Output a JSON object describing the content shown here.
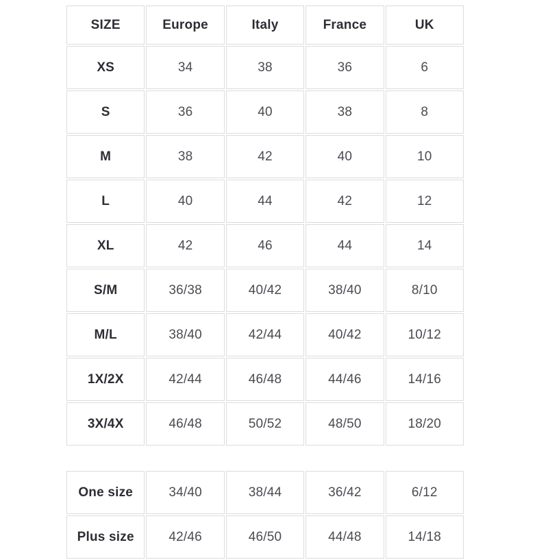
{
  "colors": {
    "border": "#dcdcdc",
    "header_text": "#2d2d35",
    "cell_text": "#4b4b52",
    "background": "#ffffff"
  },
  "main_table": {
    "headers": [
      "SIZE",
      "Europe",
      "Italy",
      "France",
      "UK"
    ],
    "rows": [
      {
        "label": "XS",
        "values": [
          "34",
          "38",
          "36",
          "6"
        ]
      },
      {
        "label": "S",
        "values": [
          "36",
          "40",
          "38",
          "8"
        ]
      },
      {
        "label": "M",
        "values": [
          "38",
          "42",
          "40",
          "10"
        ]
      },
      {
        "label": "L",
        "values": [
          "40",
          "44",
          "42",
          "12"
        ]
      },
      {
        "label": "XL",
        "values": [
          "42",
          "46",
          "44",
          "14"
        ]
      },
      {
        "label": "S/M",
        "values": [
          "36/38",
          "40/42",
          "38/40",
          "8/10"
        ]
      },
      {
        "label": "M/L",
        "values": [
          "38/40",
          "42/44",
          "40/42",
          "10/12"
        ]
      },
      {
        "label": "1X/2X",
        "values": [
          "42/44",
          "46/48",
          "44/46",
          "14/16"
        ]
      },
      {
        "label": "3X/4X",
        "values": [
          "46/48",
          "50/52",
          "48/50",
          "18/20"
        ]
      }
    ]
  },
  "extra_table": {
    "rows": [
      {
        "label": "One size",
        "values": [
          "34/40",
          "38/44",
          "36/42",
          "6/12"
        ]
      },
      {
        "label": "Plus size",
        "values": [
          "42/46",
          "46/50",
          "44/48",
          "14/18"
        ]
      }
    ]
  }
}
